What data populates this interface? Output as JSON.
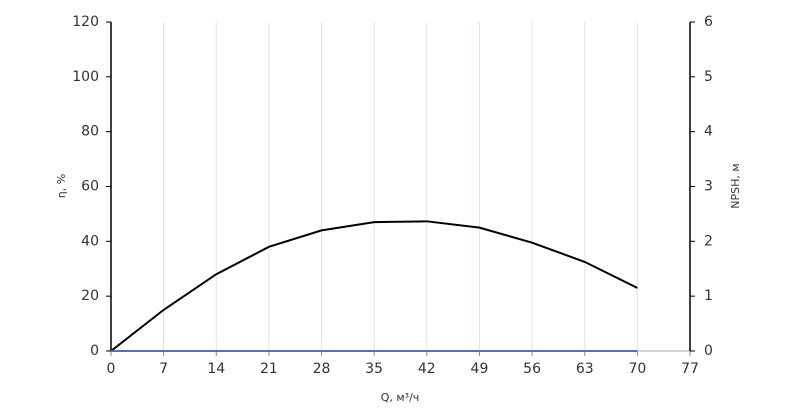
{
  "chart_data": {
    "type": "line",
    "x_label": "Q, м³/ч",
    "y_label": "η, %",
    "y2_label": "NPSH, м",
    "x": [
      0,
      7,
      14,
      21,
      28,
      35,
      42,
      49,
      56,
      63,
      70
    ],
    "series": [
      {
        "color": "#000000",
        "values": [
          0,
          15,
          28,
          38,
          44,
          47,
          47.3,
          45,
          39.5,
          32.5,
          23
        ]
      },
      {
        "color": "#5b6fb0",
        "axis": "y2",
        "values": [
          0,
          0,
          0,
          0,
          0,
          0,
          0,
          0,
          0,
          0,
          0
        ]
      }
    ],
    "xlim": [
      0,
      77
    ],
    "xticks": [
      0,
      7,
      14,
      21,
      28,
      35,
      42,
      49,
      56,
      63,
      70,
      77
    ],
    "ylim": [
      0,
      120
    ],
    "yticks": [
      0,
      20,
      40,
      60,
      80,
      100,
      120
    ],
    "y2lim": [
      0,
      6
    ],
    "y2ticks": [
      0,
      1,
      2,
      3,
      4,
      5,
      6
    ],
    "grid": true
  }
}
